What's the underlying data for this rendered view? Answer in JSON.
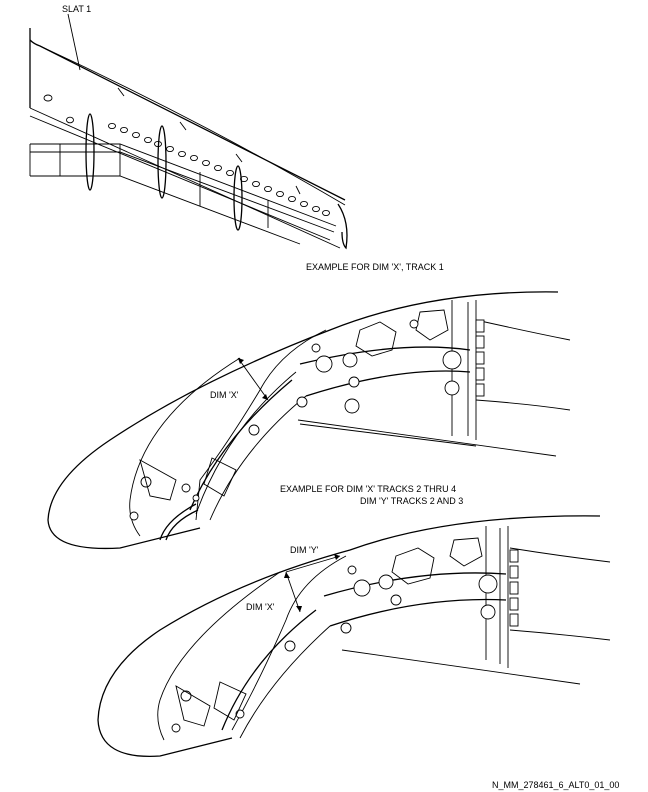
{
  "labels": {
    "slat": "SLAT 1",
    "example_track1": "EXAMPLE FOR DIM 'X', TRACK 1",
    "dim_x_upper": "DIM 'X'",
    "example_tracks_line1": "EXAMPLE FOR DIM 'X' TRACKS 2 THRU 4",
    "example_tracks_line2": "DIM 'Y' TRACKS 2 AND 3",
    "dim_y": "DIM 'Y'",
    "dim_x_lower": "DIM 'X'",
    "drawing_id": "N_MM_278461_6_ALT0_01_00"
  },
  "colors": {
    "ink": "#000000",
    "paper": "#ffffff"
  }
}
